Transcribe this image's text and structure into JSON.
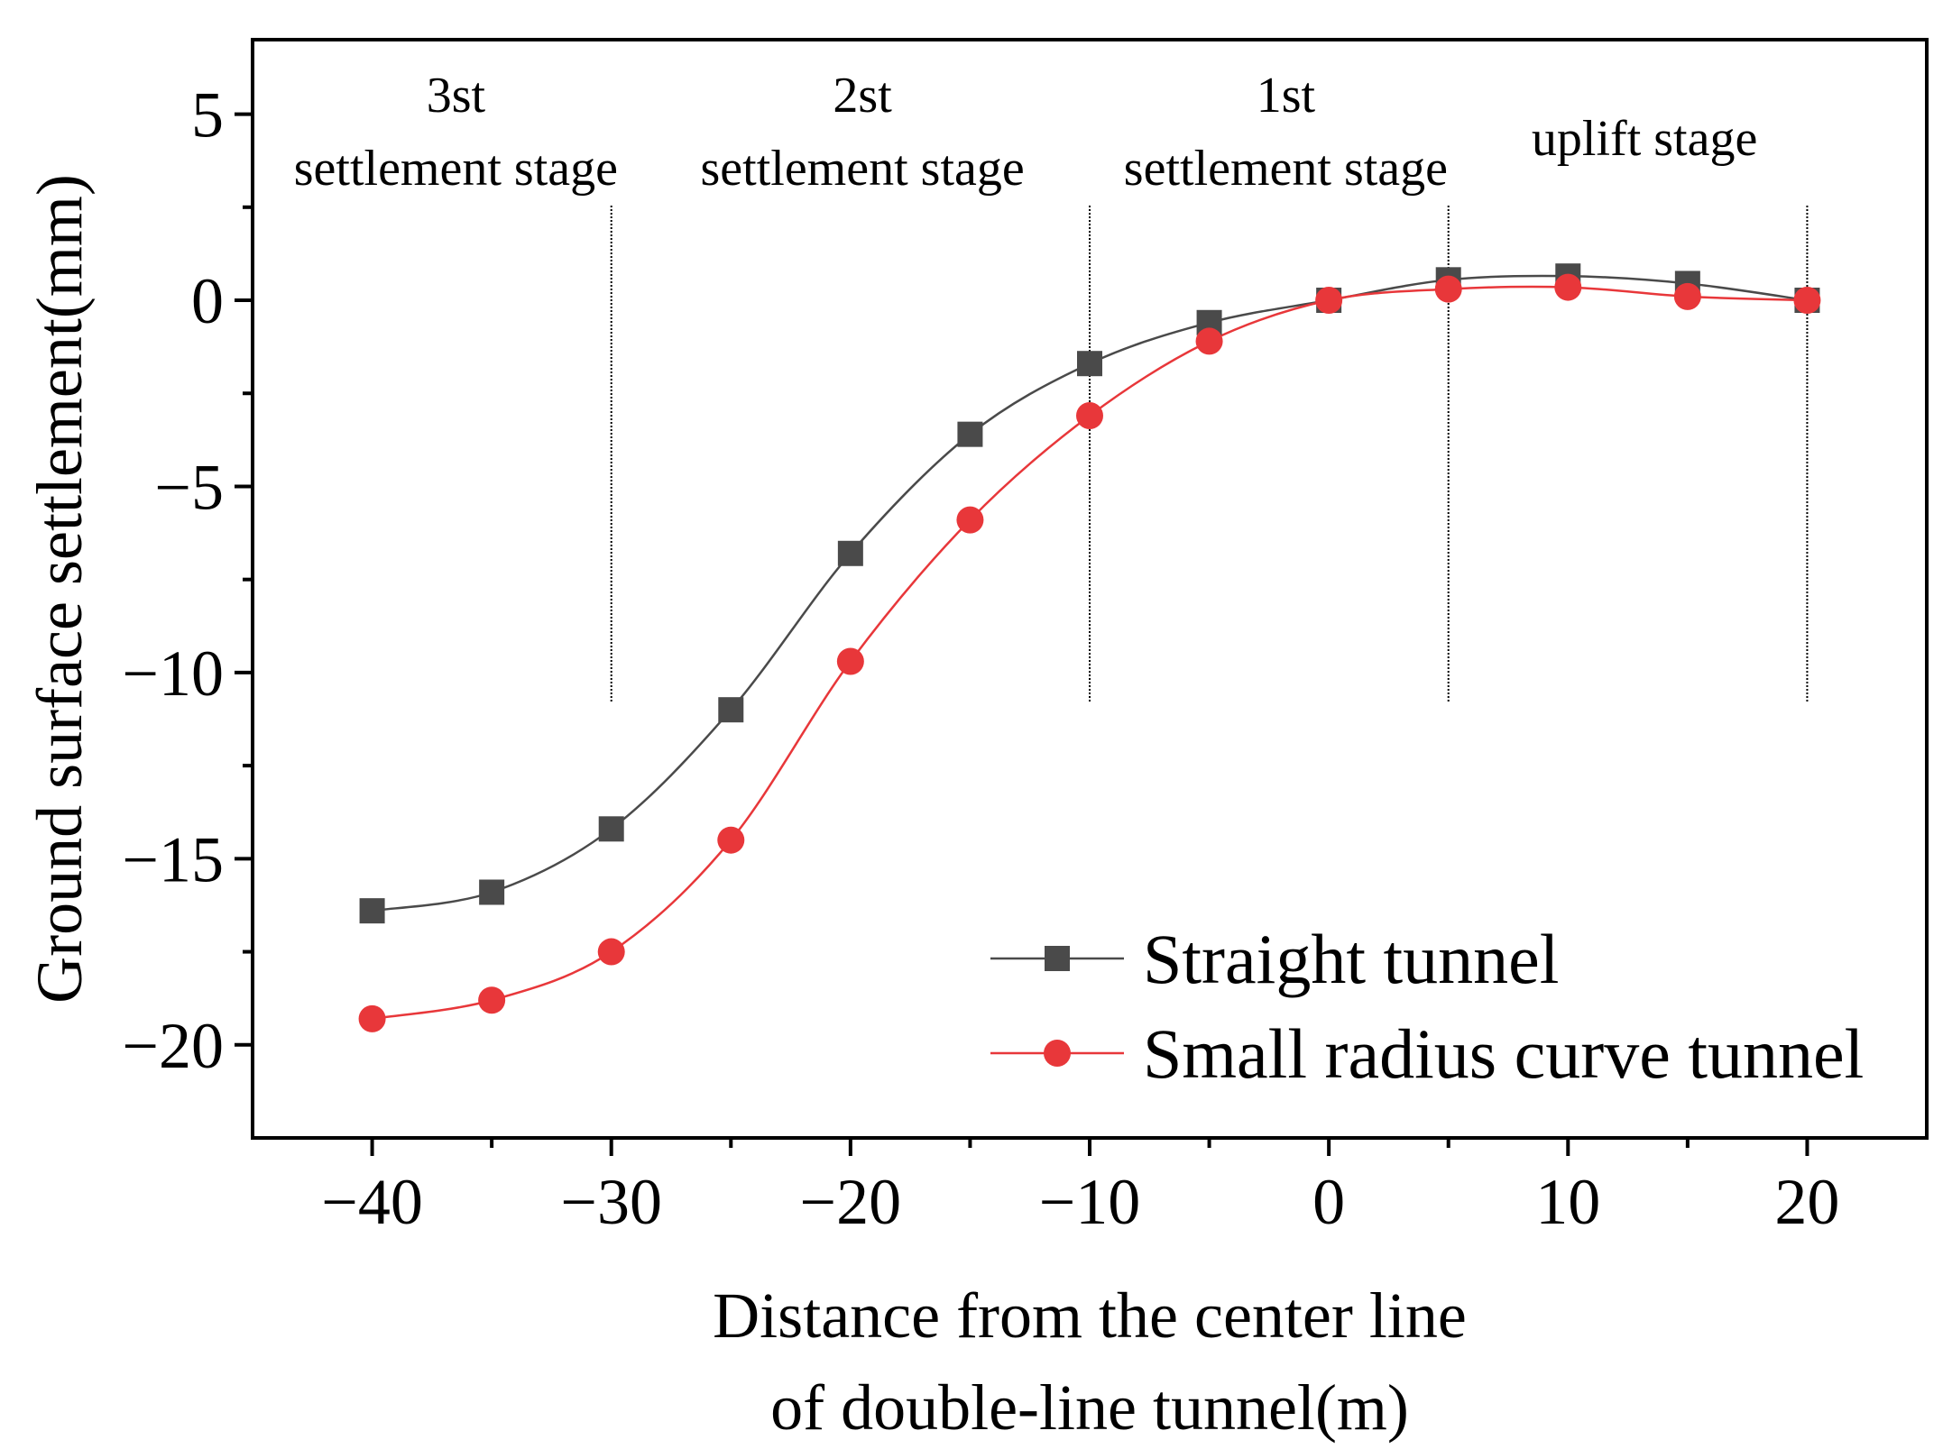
{
  "chart_data": {
    "type": "line",
    "xlabel_lines": [
      "Distance from the center line",
      "of double-line tunnel(m)"
    ],
    "ylabel": "Ground surface settlement(mm)",
    "xlim": [
      -45,
      25
    ],
    "ylim": [
      -22.5,
      7
    ],
    "xticks": [
      -40,
      -30,
      -20,
      -10,
      0,
      10,
      20
    ],
    "xtick_labels": [
      "−40",
      "−30",
      "−20",
      "−10",
      "0",
      "10",
      "20"
    ],
    "yticks": [
      5,
      0,
      -5,
      -10,
      -15,
      -20
    ],
    "ytick_labels": [
      "5",
      "0",
      "−5",
      "−10",
      "−15",
      "−20"
    ],
    "x": [
      -40,
      -35,
      -30,
      -25,
      -20,
      -15,
      -10,
      -5,
      0,
      5,
      10,
      15,
      20
    ],
    "series": [
      {
        "name": "Straight tunnel",
        "color": "#4a4a4a",
        "marker": "square",
        "values": [
          -16.4,
          -15.9,
          -14.2,
          -11.0,
          -6.8,
          -3.6,
          -1.7,
          -0.6,
          0.0,
          0.55,
          0.65,
          0.45,
          0.0
        ]
      },
      {
        "name": "Small radius curve tunnel",
        "color": "#e8373a",
        "marker": "circle",
        "values": [
          -19.3,
          -18.8,
          -17.5,
          -14.5,
          -9.7,
          -5.9,
          -3.1,
          -1.1,
          0.0,
          0.3,
          0.35,
          0.1,
          0.0
        ]
      }
    ],
    "stage_dividers_x": [
      -30,
      -10,
      5,
      20
    ],
    "stage_annotations": [
      {
        "lines": [
          "3st",
          "settlement stage"
        ],
        "x": -36.5
      },
      {
        "lines": [
          "2st",
          "settlement stage"
        ],
        "x": -19.5
      },
      {
        "lines": [
          "1st",
          "settlement stage"
        ],
        "x": -1.8
      },
      {
        "lines": [
          "uplift stage"
        ],
        "x": 13.2
      }
    ],
    "legend_position": "bottom-right"
  }
}
